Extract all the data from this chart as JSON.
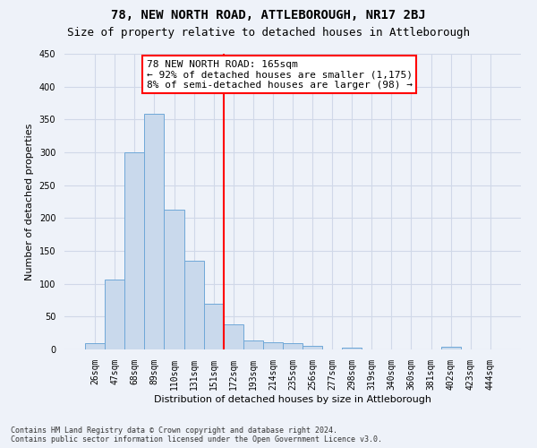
{
  "title": "78, NEW NORTH ROAD, ATTLEBOROUGH, NR17 2BJ",
  "subtitle": "Size of property relative to detached houses in Attleborough",
  "xlabel": "Distribution of detached houses by size in Attleborough",
  "ylabel": "Number of detached properties",
  "footer_line1": "Contains HM Land Registry data © Crown copyright and database right 2024.",
  "footer_line2": "Contains public sector information licensed under the Open Government Licence v3.0.",
  "bin_labels": [
    "26sqm",
    "47sqm",
    "68sqm",
    "89sqm",
    "110sqm",
    "131sqm",
    "151sqm",
    "172sqm",
    "193sqm",
    "214sqm",
    "235sqm",
    "256sqm",
    "277sqm",
    "298sqm",
    "319sqm",
    "340sqm",
    "360sqm",
    "381sqm",
    "402sqm",
    "423sqm",
    "444sqm"
  ],
  "bar_values": [
    9,
    107,
    300,
    358,
    213,
    135,
    70,
    38,
    13,
    11,
    10,
    5,
    0,
    3,
    0,
    0,
    0,
    0,
    4,
    0,
    0
  ],
  "bar_color": "#c9d9ec",
  "bar_edge_color": "#6fa8d8",
  "grid_color": "#d0d8e8",
  "annotation_line1": "78 NEW NORTH ROAD: 165sqm",
  "annotation_line2": "← 92% of detached houses are smaller (1,175)",
  "annotation_line3": "8% of semi-detached houses are larger (98) →",
  "annotation_box_color": "white",
  "annotation_box_edge_color": "red",
  "vline_x_index": 6.5,
  "vline_color": "red",
  "background_color": "#eef2f9",
  "ylim": [
    0,
    450
  ],
  "yticks": [
    0,
    50,
    100,
    150,
    200,
    250,
    300,
    350,
    400,
    450
  ],
  "title_fontsize": 10,
  "subtitle_fontsize": 9,
  "axis_label_fontsize": 8,
  "tick_fontsize": 7,
  "annotation_fontsize": 8,
  "footer_fontsize": 6
}
